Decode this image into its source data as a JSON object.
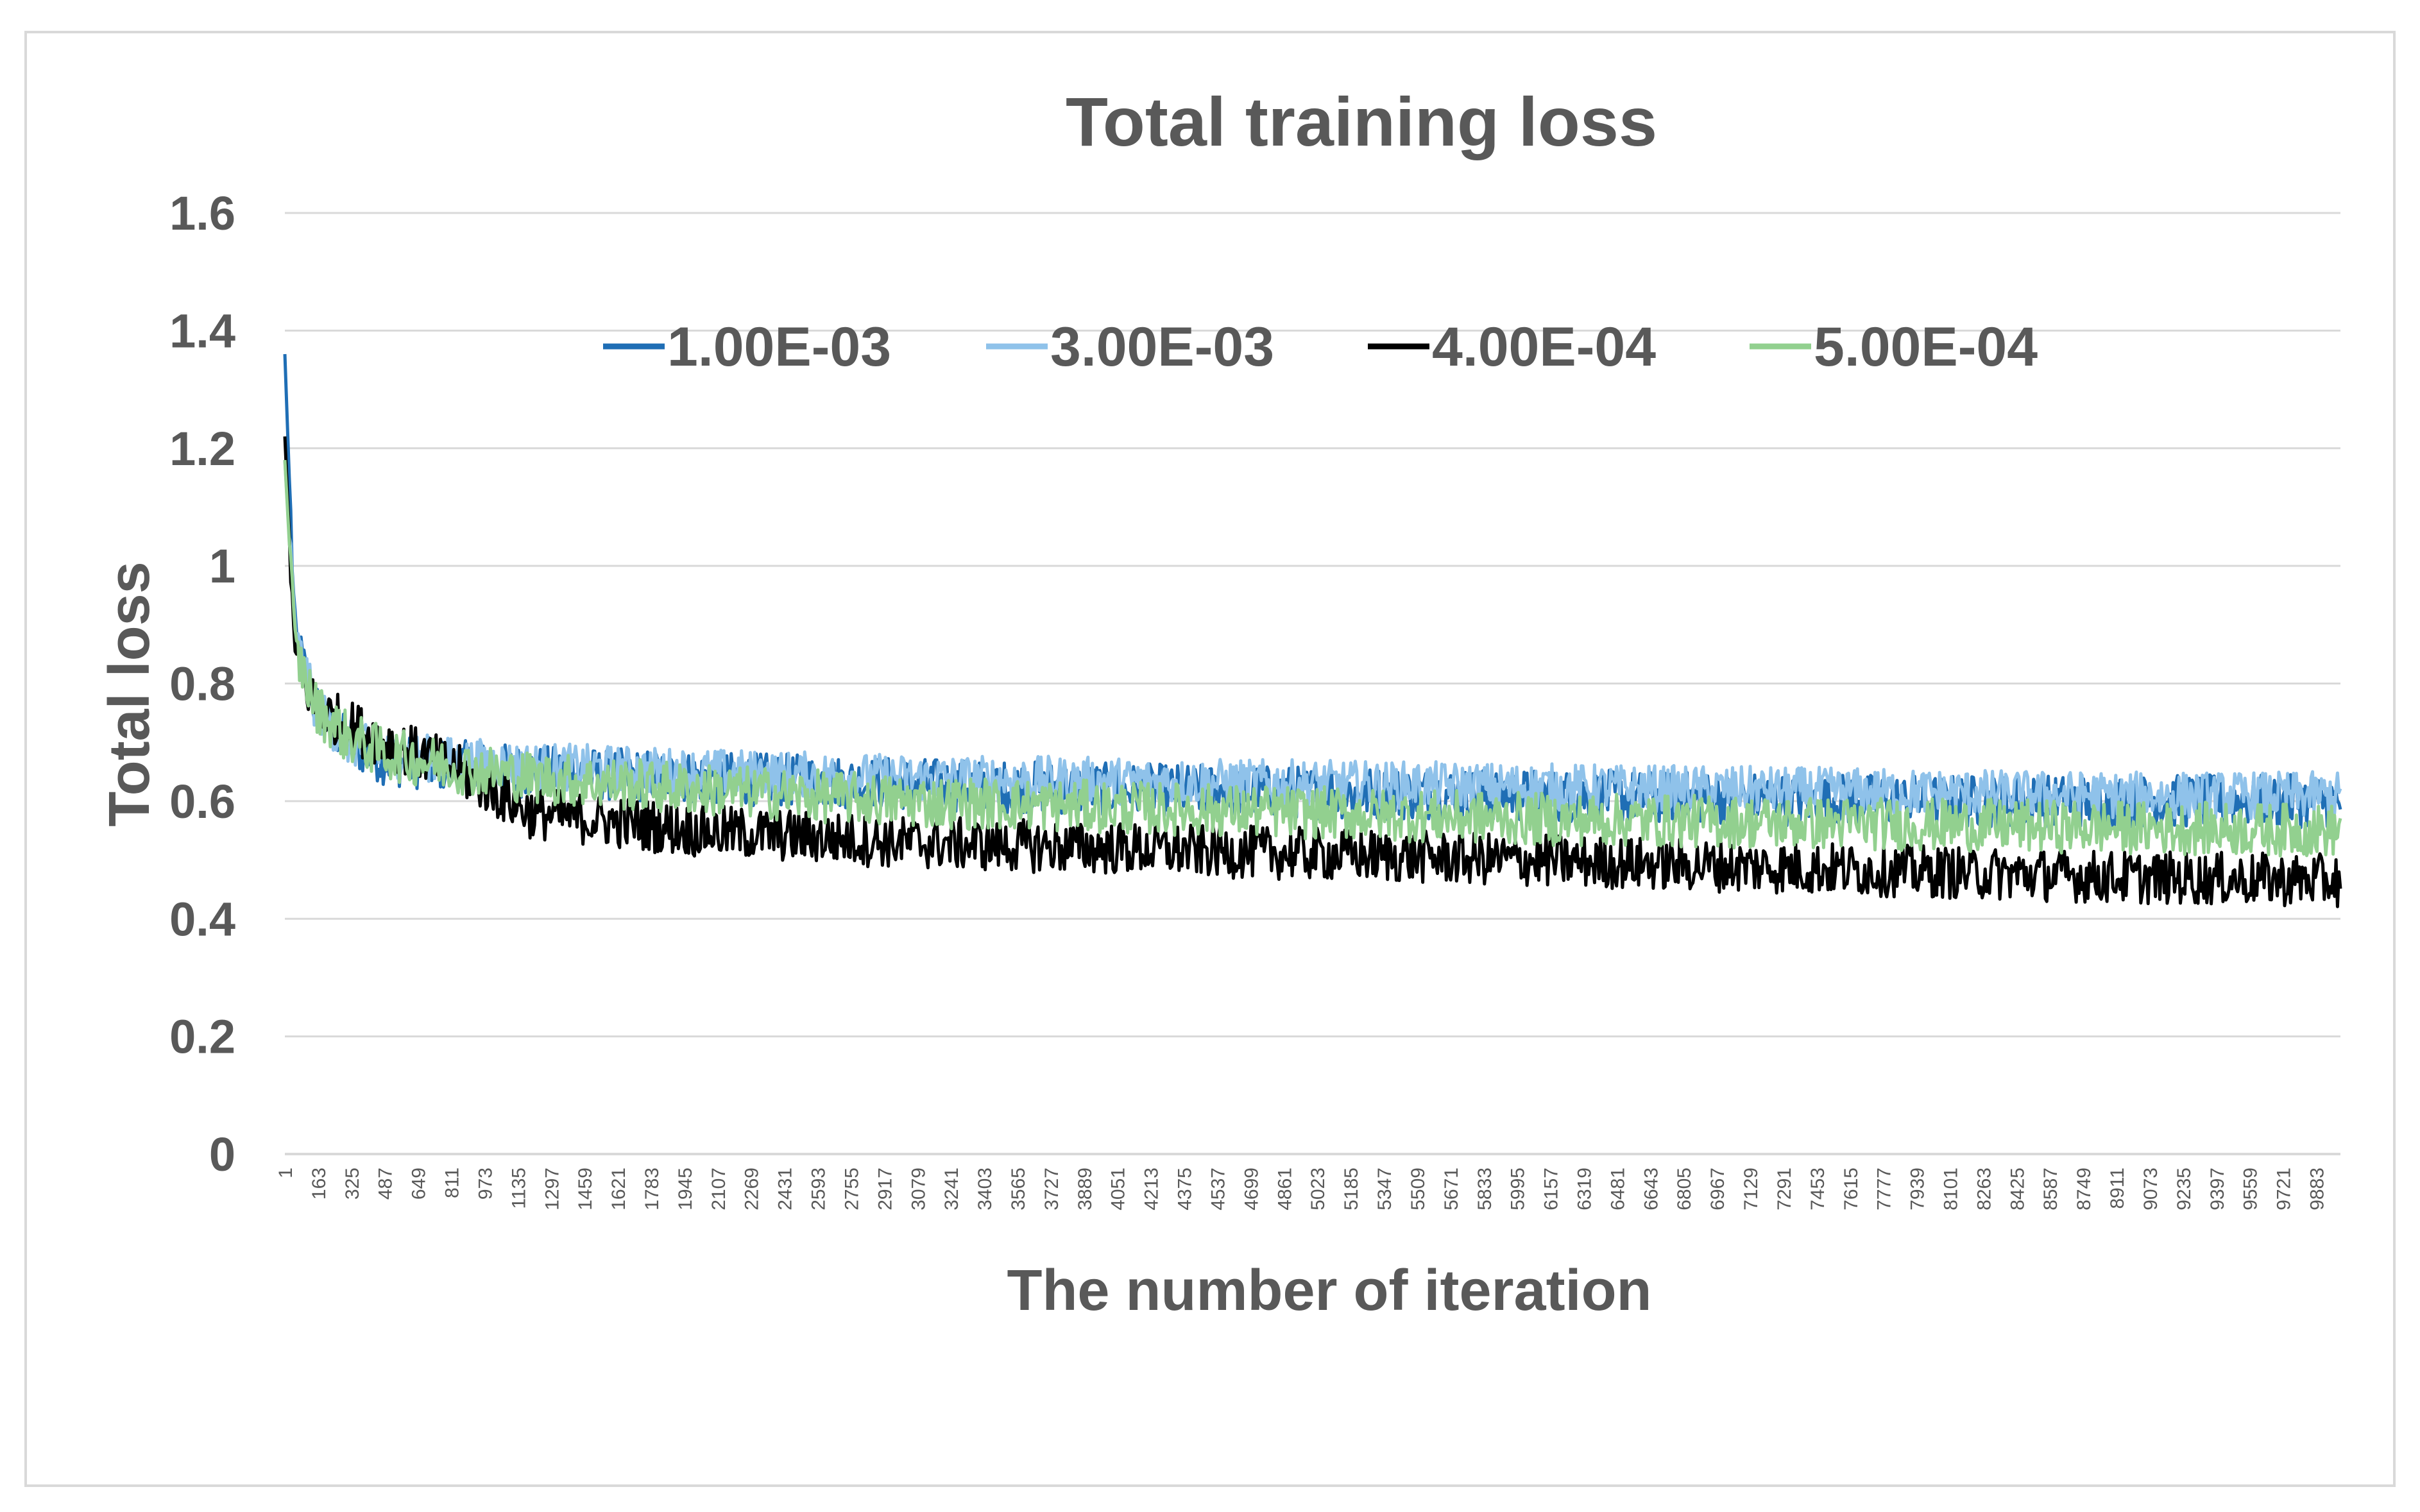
{
  "chart_data": {
    "type": "line",
    "title": "Total training loss",
    "xlabel": "The number of iteration",
    "ylabel": "Total loss",
    "ylim": [
      0,
      1.6
    ],
    "y_ticks": [
      "0",
      "0.2",
      "0.4",
      "0.6",
      "0.8",
      "1",
      "1.2",
      "1.4",
      "1.6"
    ],
    "x_ticks": [
      "1",
      "163",
      "325",
      "487",
      "649",
      "811",
      "973",
      "1135",
      "1297",
      "1459",
      "1621",
      "1783",
      "1945",
      "2107",
      "2269",
      "2431",
      "2593",
      "2755",
      "2917",
      "3079",
      "3241",
      "3403",
      "3565",
      "3727",
      "3889",
      "4051",
      "4213",
      "4375",
      "4537",
      "4699",
      "4861",
      "5023",
      "5185",
      "5347",
      "5509",
      "5671",
      "5833",
      "5995",
      "6157",
      "6319",
      "6481",
      "6643",
      "6805",
      "6967",
      "7129",
      "7291",
      "7453",
      "7615",
      "7777",
      "7939",
      "8101",
      "8263",
      "8425",
      "8587",
      "8749",
      "8911",
      "9073",
      "9235",
      "9397",
      "9559",
      "9721",
      "9883"
    ],
    "grid": true,
    "legend_position": "top",
    "series": [
      {
        "name": "1.00E-03",
        "color": "#1f6eb5",
        "x": [
          1,
          50,
          150,
          300,
          500,
          800,
          1200,
          2000,
          3000,
          4000,
          5000,
          6000,
          7000,
          8000,
          9000,
          10000
        ],
        "y": [
          1.36,
          0.88,
          0.76,
          0.7,
          0.67,
          0.66,
          0.65,
          0.64,
          0.63,
          0.62,
          0.615,
          0.61,
          0.605,
          0.6,
          0.6,
          0.6
        ]
      },
      {
        "name": "3.00E-03",
        "color": "#8fc2ea",
        "x": [
          1,
          50,
          150,
          300,
          500,
          800,
          1200,
          2000,
          3000,
          4000,
          5000,
          6000,
          7000,
          8000,
          9000,
          10000
        ],
        "y": [
          1.18,
          0.88,
          0.76,
          0.7,
          0.68,
          0.67,
          0.66,
          0.65,
          0.64,
          0.635,
          0.63,
          0.625,
          0.62,
          0.615,
          0.61,
          0.61
        ]
      },
      {
        "name": "4.00E-04",
        "color": "#000000",
        "x": [
          1,
          50,
          150,
          300,
          500,
          800,
          1200,
          2000,
          3000,
          4000,
          5000,
          6000,
          7000,
          8000,
          9000,
          10000
        ],
        "y": [
          1.22,
          0.84,
          0.76,
          0.73,
          0.7,
          0.66,
          0.58,
          0.55,
          0.53,
          0.52,
          0.51,
          0.5,
          0.49,
          0.48,
          0.47,
          0.465
        ]
      },
      {
        "name": "5.00E-04",
        "color": "#92d08f",
        "x": [
          1,
          50,
          150,
          300,
          500,
          800,
          1200,
          2000,
          3000,
          4000,
          5000,
          6000,
          7000,
          8000,
          9000,
          10000
        ],
        "y": [
          1.18,
          0.86,
          0.76,
          0.71,
          0.68,
          0.66,
          0.64,
          0.62,
          0.6,
          0.59,
          0.58,
          0.57,
          0.565,
          0.56,
          0.555,
          0.55
        ]
      }
    ]
  }
}
